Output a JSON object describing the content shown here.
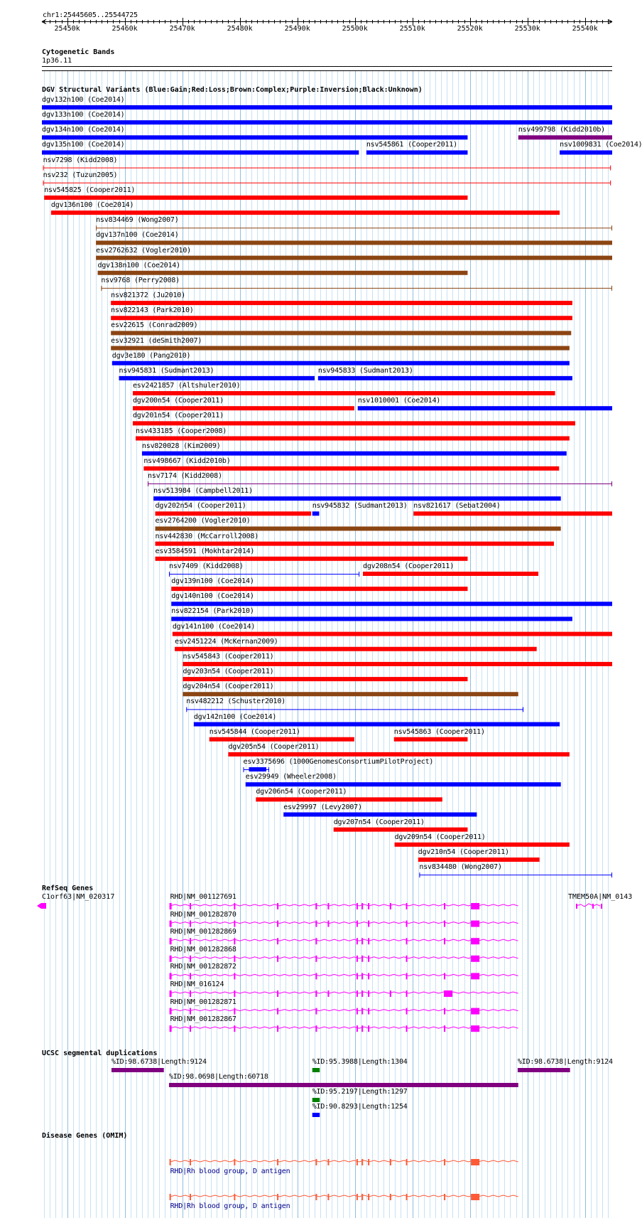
{
  "ruler": {
    "position": "chr1:25445605..25544725",
    "start": 25445605,
    "end": 25544725,
    "ticks": [
      "25450k",
      "25460k",
      "25470k",
      "25480k",
      "25490k",
      "25500k",
      "25510k",
      "25520k",
      "25530k",
      "25540k"
    ]
  },
  "cytobands": {
    "title": "Cytogenetic Bands",
    "band": "1p36.11"
  },
  "dgv": {
    "title": "DGV Structural Variants (Blue:Gain;Red:Loss;Brown:Complex;Purple:Inversion;Black:Unknown)",
    "colors": {
      "gain": "#0000ff",
      "loss": "#ff0000",
      "complex": "#8b4513",
      "inversion": "#800080",
      "unknown": "#000000"
    },
    "rows": [
      [
        {
          "label": "dgv132n100 (Coe2014)",
          "type": "gain",
          "start": 25445605,
          "end": 25544725,
          "style": "bar"
        }
      ],
      [
        {
          "label": "dgv133n100 (Coe2014)",
          "type": "gain",
          "start": 25445605,
          "end": 25544725,
          "style": "bar"
        }
      ],
      [
        {
          "label": "dgv134n100 (Coe2014)",
          "type": "gain",
          "start": 25445605,
          "end": 25519600,
          "style": "bar"
        },
        {
          "label": "nsv499798 (Kidd2010b)",
          "type": "inversion",
          "start": 25528400,
          "end": 25544725,
          "style": "bar"
        }
      ],
      [
        {
          "label": "dgv135n100 (Coe2014)",
          "type": "gain",
          "start": 25445605,
          "end": 25500700,
          "style": "bar"
        },
        {
          "label": "nsv545861 (Cooper2011)",
          "type": "gain",
          "start": 25502000,
          "end": 25519600,
          "style": "bar"
        },
        {
          "label": "nsv1009831 (Coe2014)",
          "type": "gain",
          "start": 25535600,
          "end": 25544725,
          "style": "bar"
        }
      ],
      [
        {
          "label": "nsv7298 (Kidd2008)",
          "type": "loss",
          "start": 25445800,
          "end": 25544500,
          "style": "line"
        }
      ],
      [
        {
          "label": "nsv232 (Tuzun2005)",
          "type": "loss",
          "start": 25445800,
          "end": 25544500,
          "style": "line"
        }
      ],
      [
        {
          "label": "nsv545825 (Cooper2011)",
          "type": "loss",
          "start": 25446000,
          "end": 25519600,
          "style": "bar"
        }
      ],
      [
        {
          "label": "dgv136n100 (Coe2014)",
          "type": "loss",
          "start": 25447200,
          "end": 25535600,
          "style": "bar"
        }
      ],
      [
        {
          "label": "nsv834469 (Wong2007)",
          "type": "complex",
          "start": 25455000,
          "end": 25544725,
          "style": "line"
        }
      ],
      [
        {
          "label": "dgv137n100 (Coe2014)",
          "type": "complex",
          "start": 25455000,
          "end": 25544725,
          "style": "bar"
        }
      ],
      [
        {
          "label": "esv2762632 (Vogler2010)",
          "type": "complex",
          "start": 25455000,
          "end": 25544725,
          "style": "bar"
        }
      ],
      [
        {
          "label": "dgv138n100 (Coe2014)",
          "type": "complex",
          "start": 25455300,
          "end": 25519600,
          "style": "bar"
        }
      ],
      [
        {
          "label": "nsv9768 (Perry2008)",
          "type": "complex",
          "start": 25455900,
          "end": 25544725,
          "style": "line"
        }
      ],
      [
        {
          "label": "nsv821372 (Ju2010)",
          "type": "loss",
          "start": 25457600,
          "end": 25537800,
          "style": "bar"
        }
      ],
      [
        {
          "label": "nsv822143 (Park2010)",
          "type": "loss",
          "start": 25457600,
          "end": 25537800,
          "style": "bar"
        }
      ],
      [
        {
          "label": "esv22615 (Conrad2009)",
          "type": "complex",
          "start": 25457600,
          "end": 25537600,
          "style": "bar"
        }
      ],
      [
        {
          "label": "esv32921 (deSmith2007)",
          "type": "complex",
          "start": 25457600,
          "end": 25537300,
          "style": "bar"
        }
      ],
      [
        {
          "label": "dgv3e180 (Pang2010)",
          "type": "gain",
          "start": 25457800,
          "end": 25537300,
          "style": "bar"
        }
      ],
      [
        {
          "label": "nsv945831 (Sudmant2013)",
          "type": "gain",
          "start": 25459000,
          "end": 25493000,
          "style": "bar"
        },
        {
          "label": "nsv945833 (Sudmant2013)",
          "type": "gain",
          "start": 25493600,
          "end": 25537800,
          "style": "bar"
        }
      ],
      [
        {
          "label": "esv2421857 (Altshuler2010)",
          "type": "loss",
          "start": 25461400,
          "end": 25534800,
          "style": "bar"
        }
      ],
      [
        {
          "label": "dgv200n54 (Cooper2011)",
          "type": "loss",
          "start": 25461400,
          "end": 25499900,
          "style": "bar"
        },
        {
          "label": "nsv1010001 (Coe2014)",
          "type": "gain",
          "start": 25500500,
          "end": 25544725,
          "style": "bar"
        }
      ],
      [
        {
          "label": "dgv201n54 (Cooper2011)",
          "type": "loss",
          "start": 25461400,
          "end": 25538300,
          "style": "bar"
        }
      ],
      [
        {
          "label": "nsv433185 (Cooper2008)",
          "type": "loss",
          "start": 25461900,
          "end": 25537300,
          "style": "bar"
        }
      ],
      [
        {
          "label": "nsv820028 (Kim2009)",
          "type": "gain",
          "start": 25463000,
          "end": 25536800,
          "style": "bar"
        }
      ],
      [
        {
          "label": "nsv498667 (Kidd2010b)",
          "type": "loss",
          "start": 25463300,
          "end": 25535500,
          "style": "bar"
        }
      ],
      [
        {
          "label": "nsv7174 (Kidd2008)",
          "type": "inversion",
          "start": 25464000,
          "end": 25544725,
          "style": "line"
        }
      ],
      [
        {
          "label": "nsv513984 (Campbell2011)",
          "type": "gain",
          "start": 25465000,
          "end": 25535800,
          "style": "bar"
        }
      ],
      [
        {
          "label": "dgv202n54 (Cooper2011)",
          "type": "loss",
          "start": 25465300,
          "end": 25492400,
          "style": "bar"
        },
        {
          "label": "nsv945832 (Sudmant2013)",
          "type": "gain",
          "start": 25492600,
          "end": 25493800,
          "style": "bar"
        },
        {
          "label": "nsv821617 (Sebat2004)",
          "type": "loss",
          "start": 25510200,
          "end": 25544725,
          "style": "bar"
        }
      ],
      [
        {
          "label": "esv2764200 (Vogler2010)",
          "type": "complex",
          "start": 25465300,
          "end": 25535800,
          "style": "bar"
        }
      ],
      [
        {
          "label": "nsv442830 (McCarroll2008)",
          "type": "loss",
          "start": 25465300,
          "end": 25534600,
          "style": "bar"
        }
      ],
      [
        {
          "label": "esv3584591 (Mokhtar2014)",
          "type": "loss",
          "start": 25465300,
          "end": 25519600,
          "style": "bar"
        }
      ],
      [
        {
          "label": "nsv7409 (Kidd2008)",
          "type": "gain",
          "start": 25467700,
          "end": 25500800,
          "style": "line"
        },
        {
          "label": "dgv208n54 (Cooper2011)",
          "type": "loss",
          "start": 25501400,
          "end": 25531900,
          "style": "bar"
        }
      ],
      [
        {
          "label": "dgv139n100 (Coe2014)",
          "type": "loss",
          "start": 25468100,
          "end": 25519600,
          "style": "bar"
        }
      ],
      [
        {
          "label": "dgv140n100 (Coe2014)",
          "type": "gain",
          "start": 25468100,
          "end": 25544725,
          "style": "bar"
        }
      ],
      [
        {
          "label": "nsv822154 (Park2010)",
          "type": "gain",
          "start": 25468100,
          "end": 25537800,
          "style": "bar"
        }
      ],
      [
        {
          "label": "dgv141n100 (Coe2014)",
          "type": "loss",
          "start": 25468300,
          "end": 25544725,
          "style": "bar"
        }
      ],
      [
        {
          "label": "esv2451224 (McKernan2009)",
          "type": "loss",
          "start": 25468700,
          "end": 25531600,
          "style": "bar"
        }
      ],
      [
        {
          "label": "nsv545843 (Cooper2011)",
          "type": "loss",
          "start": 25470100,
          "end": 25544725,
          "style": "bar"
        }
      ],
      [
        {
          "label": "dgv203n54 (Cooper2011)",
          "type": "loss",
          "start": 25470100,
          "end": 25519600,
          "style": "bar"
        }
      ],
      [
        {
          "label": "dgv204n54 (Cooper2011)",
          "type": "complex",
          "start": 25470100,
          "end": 25528400,
          "style": "bar"
        }
      ],
      [
        {
          "label": "nsv482212 (Schuster2010)",
          "type": "gain",
          "start": 25470700,
          "end": 25529300,
          "style": "line"
        }
      ],
      [
        {
          "label": "dgv142n100 (Coe2014)",
          "type": "gain",
          "start": 25472000,
          "end": 25535600,
          "style": "bar"
        }
      ],
      [
        {
          "label": "nsv545844 (Cooper2011)",
          "type": "loss",
          "start": 25474700,
          "end": 25499900,
          "style": "bar"
        },
        {
          "label": "nsv545863 (Cooper2011)",
          "type": "loss",
          "start": 25506800,
          "end": 25519600,
          "style": "bar"
        }
      ],
      [
        {
          "label": "dgv205n54 (Cooper2011)",
          "type": "loss",
          "start": 25478000,
          "end": 25537300,
          "style": "bar"
        }
      ],
      [
        {
          "label": "esv3375696 (1000GenomesConsortiumPilotProject)",
          "type": "gain",
          "start": 25480600,
          "end": 25485100,
          "style": "mixed"
        }
      ],
      [
        {
          "label": "esv29949 (Wheeler2008)",
          "type": "gain",
          "start": 25481000,
          "end": 25535800,
          "style": "bar"
        }
      ],
      [
        {
          "label": "dgv206n54 (Cooper2011)",
          "type": "loss",
          "start": 25482800,
          "end": 25515200,
          "style": "bar"
        }
      ],
      [
        {
          "label": "esv29997 (Levy2007)",
          "type": "gain",
          "start": 25487600,
          "end": 25521200,
          "style": "bar"
        }
      ],
      [
        {
          "label": "dgv207n54 (Cooper2011)",
          "type": "loss",
          "start": 25496300,
          "end": 25519600,
          "style": "bar"
        }
      ],
      [
        {
          "label": "dgv209n54 (Cooper2011)",
          "type": "loss",
          "start": 25506900,
          "end": 25537300,
          "style": "bar"
        }
      ],
      [
        {
          "label": "dgv210n54 (Cooper2011)",
          "type": "loss",
          "start": 25511000,
          "end": 25532100,
          "style": "bar"
        }
      ],
      [
        {
          "label": "nsv834480 (Wong2007)",
          "type": "gain",
          "start": 25511200,
          "end": 25544725,
          "style": "line"
        }
      ]
    ]
  },
  "refseq": {
    "title": "RefSeq Genes",
    "color": "#ff00ff",
    "left_gene": "C1orf63|NM_020317",
    "right_gene": "TMEM50A|NM_0143",
    "transcripts": [
      {
        "label": "RHD|NM_001127691",
        "exons": [
          25467900,
          25471400,
          25479100,
          25486600,
          25493300,
          25495400,
          25500400,
          25501300,
          25502400,
          25506200,
          25509000,
          25515600,
          25520300
        ]
      },
      {
        "label": "RHD|NM_001282870",
        "exons": [
          25467900,
          25471400,
          25479100,
          25486600,
          25493300,
          25495400,
          25500400,
          25502400,
          25509000,
          25515600,
          25520300
        ]
      },
      {
        "label": "RHD|NM_001282869",
        "exons": [
          25467900,
          25471400,
          25479100,
          25486600,
          25493300,
          25500400,
          25501300,
          25502400,
          25509000,
          25515600,
          25520300
        ]
      },
      {
        "label": "RHD|NM_001282868",
        "exons": [
          25467900,
          25471400,
          25479100,
          25486600,
          25493300,
          25500400,
          25501300,
          25502400,
          25509000,
          25520300
        ]
      },
      {
        "label": "RHD|NM_001282872",
        "exons": [
          25467900,
          25471400,
          25479100,
          25493300,
          25500400,
          25501300,
          25502400,
          25509000,
          25515600,
          25520300
        ]
      },
      {
        "label": "RHD|NM_016124",
        "exons": [
          25467900,
          25471400,
          25479100,
          25486600,
          25493300,
          25495400,
          25500400,
          25501300,
          25502400,
          25506200,
          25509000,
          25515600
        ]
      },
      {
        "label": "RHD|NM_001282871",
        "exons": [
          25467900,
          25471400,
          25479100,
          25486600,
          25493300,
          25500400,
          25501300,
          25502400,
          25509000,
          25515600,
          25520300
        ]
      },
      {
        "label": "RHD|NM_001282867",
        "exons": [
          25467900,
          25471400,
          25479100,
          25486600,
          25493300,
          25500400,
          25501300,
          25502400,
          25509000,
          25515600,
          25520300
        ]
      }
    ],
    "gene_start": 25467900,
    "gene_end": 25528600
  },
  "segdup": {
    "title": "UCSC segmental duplications",
    "items": [
      {
        "label": "%ID:98.6738|Length:9124",
        "color": "#800080",
        "start": 25457700,
        "end": 25466800
      },
      {
        "label": "%ID:95.3988|Length:1304",
        "color": "#008000",
        "start": 25492600,
        "end": 25493900
      },
      {
        "label": "%ID:98.6738|Length:9124",
        "color": "#800080",
        "start": 25528300,
        "end": 25537400
      },
      {
        "label": "%ID:98.0698|Length:60718",
        "color": "#800080",
        "start": 25467700,
        "end": 25528400
      },
      {
        "label": "%ID:95.2197|Length:1297",
        "color": "#008000",
        "start": 25492600,
        "end": 25493900
      },
      {
        "label": "%ID:90.8293|Length:1254",
        "color": "#0000ff",
        "start": 25492600,
        "end": 25493900
      }
    ]
  },
  "omim": {
    "title": "Disease Genes (OMIM)",
    "color": "#ff5a36",
    "items": [
      {
        "label": "RHD|Rh blood group, D antigen"
      },
      {
        "label": "RHD|Rh blood group, D antigen"
      }
    ]
  }
}
